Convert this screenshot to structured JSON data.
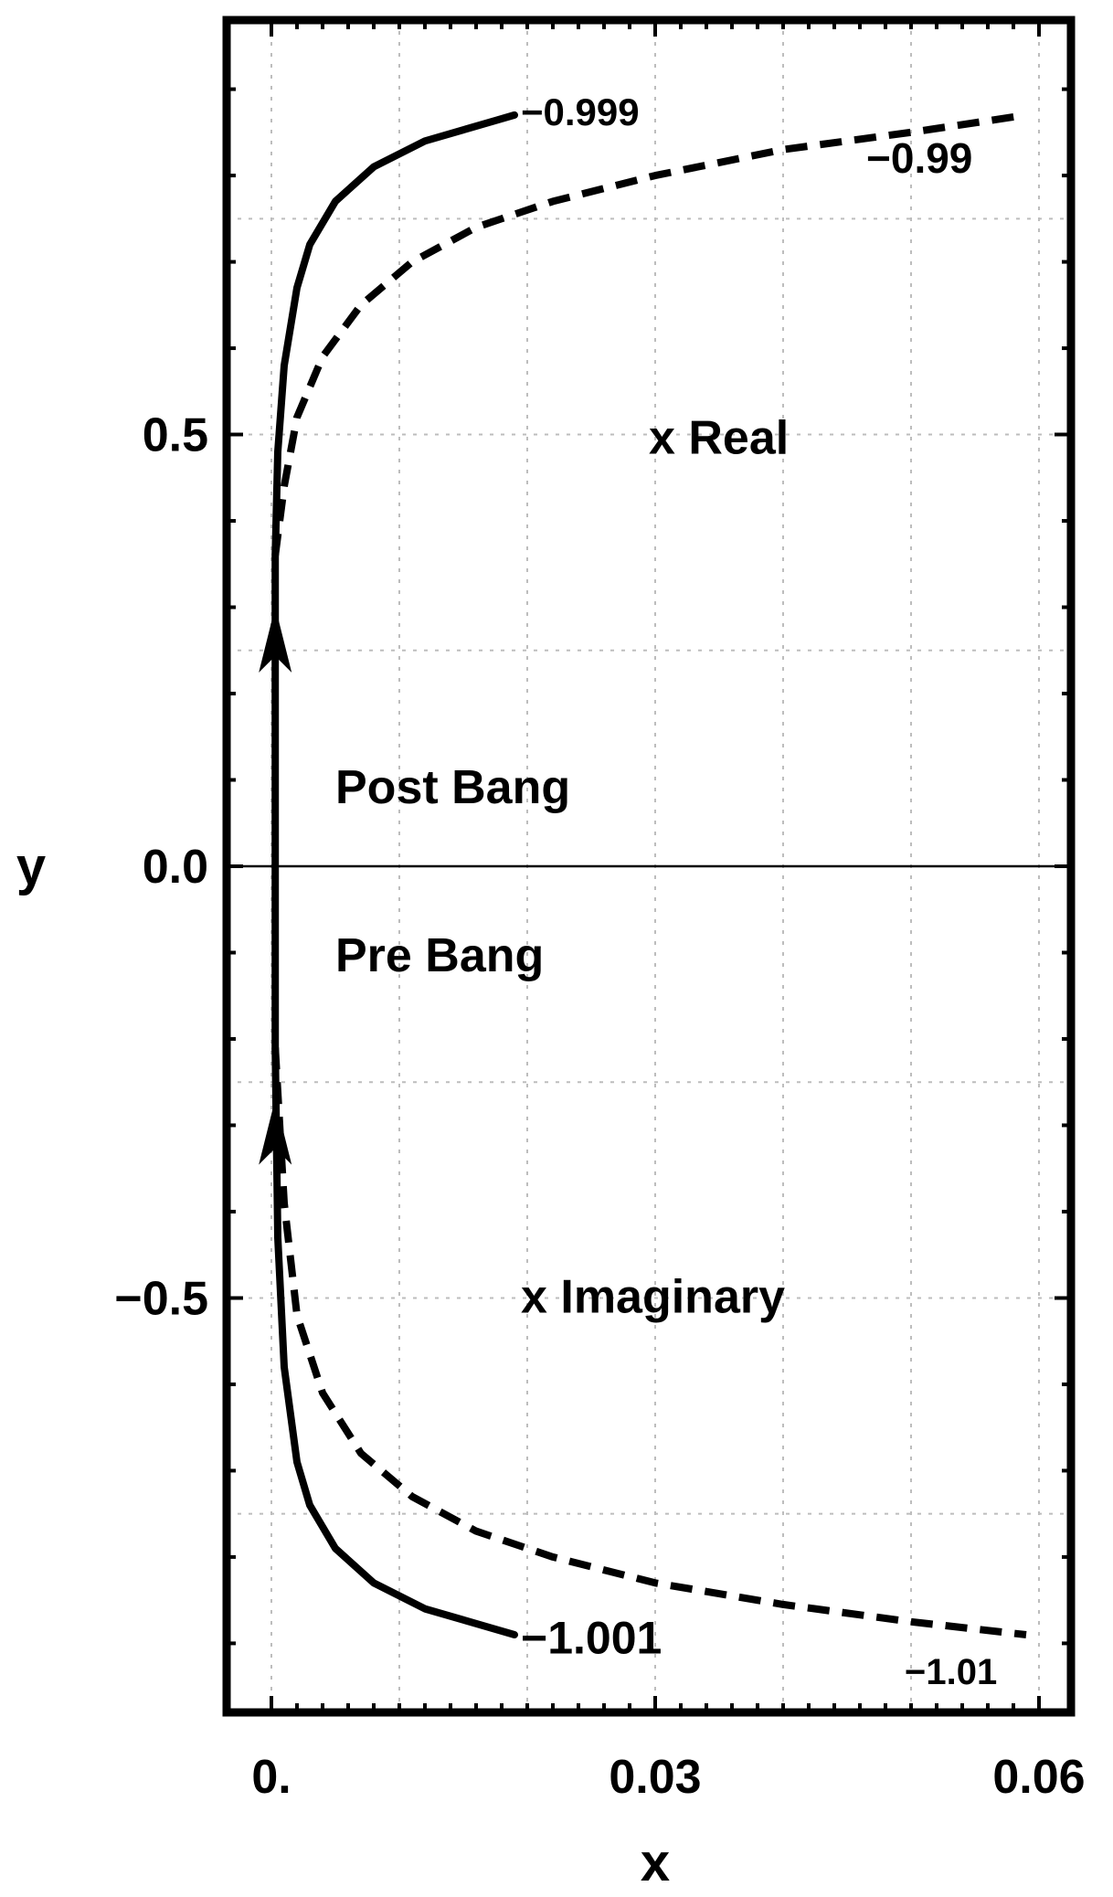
{
  "chart_data": {
    "type": "line",
    "xlabel": "x",
    "ylabel": "y",
    "xlim": [
      -0.0035,
      0.0625
    ],
    "ylim": [
      -0.98,
      0.98
    ],
    "x_ticks": [
      {
        "value": 0,
        "label": "0."
      },
      {
        "value": 0.03,
        "label": "0.03"
      },
      {
        "value": 0.06,
        "label": "0.06"
      }
    ],
    "y_ticks": [
      {
        "value": 0.5,
        "label": "0.5"
      },
      {
        "value": 0.0,
        "label": "0.0"
      },
      {
        "value": -0.5,
        "label": "−0.5"
      }
    ],
    "grid": true,
    "series": [
      {
        "name": "−0.999",
        "style": "solid",
        "x": [
          0.0003,
          0.0003,
          0.0005,
          0.001,
          0.002,
          0.003,
          0.005,
          0.008,
          0.012,
          0.019
        ],
        "y": [
          0.0,
          0.36,
          0.48,
          0.58,
          0.67,
          0.72,
          0.77,
          0.81,
          0.84,
          0.87
        ]
      },
      {
        "name": "−0.99",
        "style": "dashed",
        "x": [
          0.0003,
          0.001,
          0.002,
          0.004,
          0.007,
          0.011,
          0.016,
          0.022,
          0.03,
          0.04,
          0.05,
          0.059
        ],
        "y": [
          0.36,
          0.44,
          0.52,
          0.59,
          0.65,
          0.7,
          0.74,
          0.77,
          0.8,
          0.83,
          0.85,
          0.87
        ]
      },
      {
        "name": "−1.001",
        "style": "solid",
        "x": [
          0.0003,
          0.0003,
          0.0005,
          0.001,
          0.002,
          0.003,
          0.005,
          0.008,
          0.012,
          0.019
        ],
        "y": [
          0.0,
          -0.21,
          -0.43,
          -0.58,
          -0.69,
          -0.74,
          -0.79,
          -0.83,
          -0.86,
          -0.89
        ]
      },
      {
        "name": "−1.01",
        "style": "dashed",
        "x": [
          0.0003,
          0.001,
          0.002,
          0.004,
          0.007,
          0.011,
          0.016,
          0.022,
          0.03,
          0.04,
          0.05,
          0.059
        ],
        "y": [
          -0.21,
          -0.39,
          -0.52,
          -0.61,
          -0.68,
          -0.73,
          -0.77,
          -0.8,
          -0.83,
          -0.855,
          -0.875,
          -0.89
        ]
      }
    ],
    "annotations": [
      {
        "text": "−0.999",
        "x": 0.0195,
        "y": 0.875
      },
      {
        "text": "−0.99",
        "x": 0.0465,
        "y": 0.82
      },
      {
        "text": "x Real",
        "x": 0.0295,
        "y": 0.495
      },
      {
        "text": "Post Bang",
        "x": 0.005,
        "y": 0.09
      },
      {
        "text": "Pre Bang",
        "x": 0.005,
        "y": -0.105
      },
      {
        "text": "x Imaginary",
        "x": 0.0195,
        "y": -0.5
      },
      {
        "text": "−1.001",
        "x": 0.0195,
        "y": -0.895
      },
      {
        "text": "−1.01",
        "x": 0.0495,
        "y": -0.93
      }
    ],
    "arrows": [
      {
        "x": 0.0003,
        "y": 0.29,
        "direction": "up"
      },
      {
        "x": 0.0003,
        "y": -0.28,
        "direction": "up"
      }
    ]
  }
}
